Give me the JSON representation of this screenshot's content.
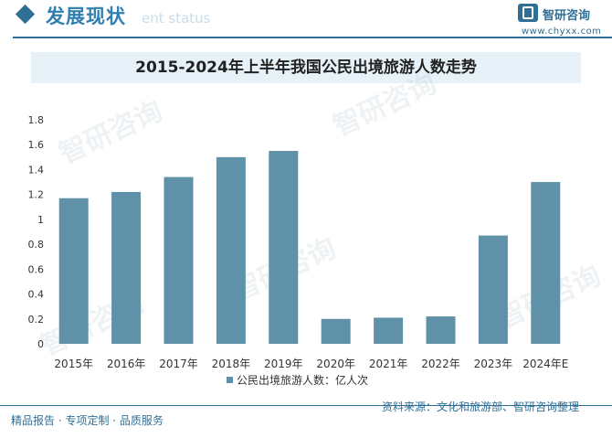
{
  "header": {
    "section_title": "发展现状",
    "section_subtitle": "ent status",
    "brand_name": "智研咨询",
    "brand_url": "www.chyxx.com"
  },
  "watermark": "智研咨询",
  "footer": {
    "left": "精品报告 · 专项定制 · 品质服务",
    "source": "资料来源：文化和旅游部、智研咨询整理"
  },
  "colors": {
    "bar": "#5f92a8",
    "accent": "#2f6f96",
    "header_title": "#2f7fb0",
    "title_band": "#e6f1f8",
    "axis_text": "#333333"
  },
  "chart_data": {
    "type": "bar",
    "title": "2015-2024年上半年我国公民出境旅游人数走势",
    "categories": [
      "2015年",
      "2016年",
      "2017年",
      "2018年",
      "2019年",
      "2020年",
      "2021年",
      "2022年",
      "2023年",
      "2024年E"
    ],
    "series": [
      {
        "name": "公民出境旅游人数：亿人次",
        "values": [
          1.17,
          1.22,
          1.34,
          1.5,
          1.55,
          0.2,
          0.21,
          0.22,
          0.87,
          1.3
        ]
      }
    ],
    "y_ticks": [
      "0",
      "0.2",
      "0.4",
      "0.6",
      "0.8",
      "1",
      "1.2",
      "1.4",
      "1.6",
      "1.8"
    ],
    "ylim": [
      0,
      1.8
    ],
    "grid": false,
    "legend_position": "bottom"
  }
}
